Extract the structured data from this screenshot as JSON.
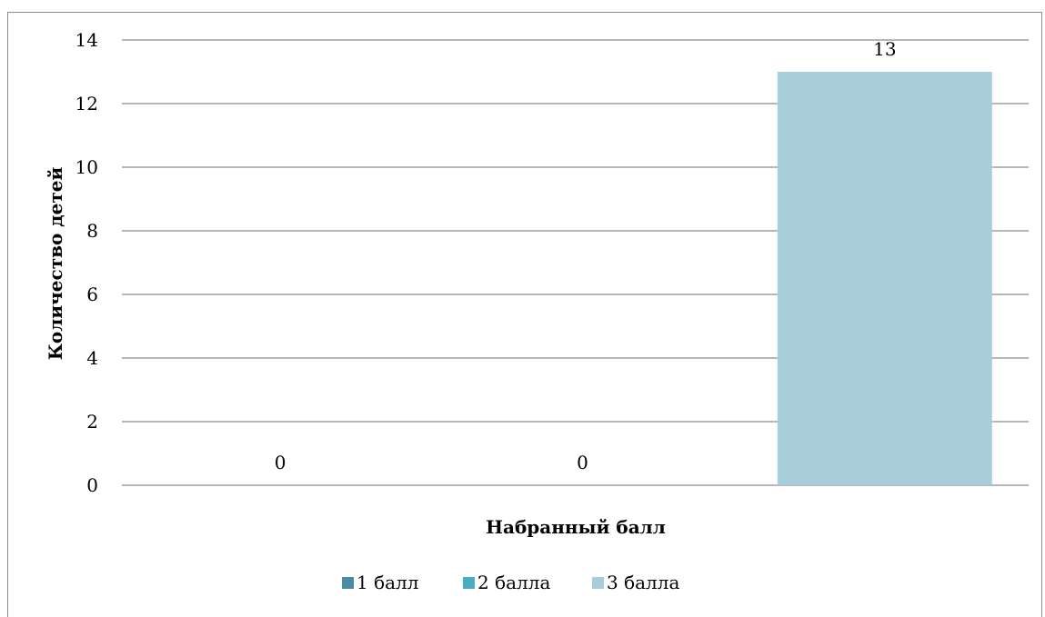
{
  "chart_data": {
    "type": "bar",
    "title": "",
    "xlabel": "Набранный балл",
    "ylabel": "Количество детей",
    "ylim": [
      0,
      14
    ],
    "yticks": [
      0,
      2,
      4,
      6,
      8,
      10,
      12,
      14
    ],
    "grid": true,
    "legend_position": "bottom",
    "series": [
      {
        "name": "1 балл",
        "values": [
          0
        ],
        "color": "#4a8ca5"
      },
      {
        "name": "2 балла",
        "values": [
          0
        ],
        "color": "#4bacc6"
      },
      {
        "name": "3 балла",
        "values": [
          13
        ],
        "color": "#a8cedc"
      }
    ]
  }
}
